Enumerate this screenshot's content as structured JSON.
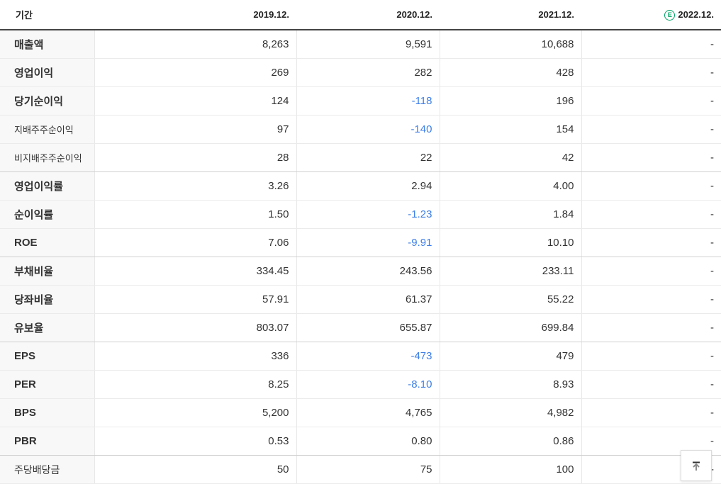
{
  "table": {
    "header": {
      "period_label": "기간",
      "columns": [
        "2019.12.",
        "2020.12.",
        "2021.12.",
        "2022.12."
      ],
      "estimate_badge": "E"
    },
    "rows": [
      {
        "label": "매출액",
        "style": "main",
        "group_end": false,
        "values": [
          "8,263",
          "9,591",
          "10,688",
          "-"
        ]
      },
      {
        "label": "영업이익",
        "style": "main",
        "group_end": false,
        "values": [
          "269",
          "282",
          "428",
          "-"
        ]
      },
      {
        "label": "당기순이익",
        "style": "main",
        "group_end": false,
        "values": [
          "124",
          "-118",
          "196",
          "-"
        ]
      },
      {
        "label": "지배주주순이익",
        "style": "sub",
        "group_end": false,
        "values": [
          "97",
          "-140",
          "154",
          "-"
        ]
      },
      {
        "label": "비지배주주순이익",
        "style": "sub",
        "group_end": true,
        "values": [
          "28",
          "22",
          "42",
          "-"
        ]
      },
      {
        "label": "영업이익률",
        "style": "main",
        "group_end": false,
        "values": [
          "3.26",
          "2.94",
          "4.00",
          "-"
        ]
      },
      {
        "label": "순이익률",
        "style": "main",
        "group_end": false,
        "values": [
          "1.50",
          "-1.23",
          "1.84",
          "-"
        ]
      },
      {
        "label": "ROE",
        "style": "main",
        "group_end": true,
        "values": [
          "7.06",
          "-9.91",
          "10.10",
          "-"
        ]
      },
      {
        "label": "부채비율",
        "style": "main",
        "group_end": false,
        "values": [
          "334.45",
          "243.56",
          "233.11",
          "-"
        ]
      },
      {
        "label": "당좌비율",
        "style": "main",
        "group_end": false,
        "values": [
          "57.91",
          "61.37",
          "55.22",
          "-"
        ]
      },
      {
        "label": "유보율",
        "style": "main",
        "group_end": true,
        "values": [
          "803.07",
          "655.87",
          "699.84",
          "-"
        ]
      },
      {
        "label": "EPS",
        "style": "main",
        "group_end": false,
        "values": [
          "336",
          "-473",
          "479",
          "-"
        ]
      },
      {
        "label": "PER",
        "style": "main",
        "group_end": false,
        "values": [
          "8.25",
          "-8.10",
          "8.93",
          "-"
        ]
      },
      {
        "label": "BPS",
        "style": "main",
        "group_end": false,
        "values": [
          "5,200",
          "4,765",
          "4,982",
          "-"
        ]
      },
      {
        "label": "PBR",
        "style": "main",
        "group_end": true,
        "values": [
          "0.53",
          "0.80",
          "0.86",
          "-"
        ]
      },
      {
        "label": "주당배당금",
        "style": "plain",
        "group_end": false,
        "values": [
          "50",
          "75",
          "100",
          "-"
        ]
      }
    ]
  },
  "colors": {
    "negative_value": "#3d7fe8",
    "estimate_badge_green": "#00a264",
    "header_border": "#444444",
    "row_border": "#ebebeb",
    "group_border": "#cfcfcf",
    "label_column_bg": "#f8f8f8"
  }
}
